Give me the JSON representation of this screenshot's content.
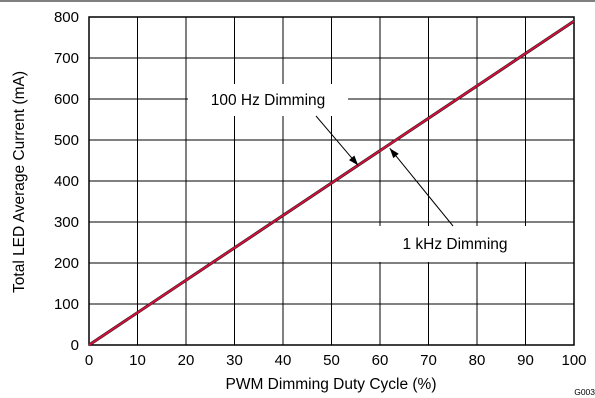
{
  "chart_data": {
    "type": "line",
    "xlabel": "PWM Dimming Duty Cycle (%)",
    "ylabel": "Total LED Average Current (mA)",
    "xlim": [
      0,
      100
    ],
    "ylim": [
      0,
      800
    ],
    "xticks": [
      "0",
      "10",
      "20",
      "30",
      "40",
      "50",
      "60",
      "70",
      "80",
      "90",
      "100"
    ],
    "yticks": [
      "0",
      "100",
      "200",
      "300",
      "400",
      "500",
      "600",
      "700",
      "800"
    ],
    "grid": true,
    "series": [
      {
        "name": "100 Hz Dimming",
        "color": "#1a1a1a",
        "x": [
          0,
          100
        ],
        "y": [
          0,
          790
        ]
      },
      {
        "name": "1 kHz Dimming",
        "color": "#d0103a",
        "x": [
          0,
          100
        ],
        "y": [
          0,
          790
        ]
      }
    ],
    "annotations": [
      {
        "text": "100 Hz Dimming",
        "arrow_to": [
          55.5,
          438
        ]
      },
      {
        "text": "1 kHz Dimming",
        "arrow_to": [
          62,
          480
        ]
      }
    ],
    "figure_id": "G003"
  }
}
